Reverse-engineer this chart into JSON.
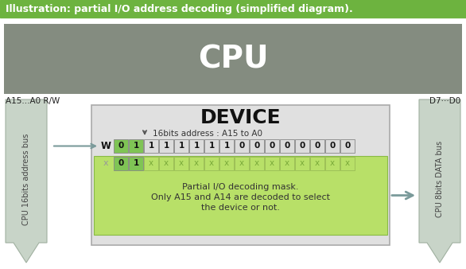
{
  "title_bar_text": "Illustration: partial I/O address decoding (simplified diagram).",
  "title_bar_color": "#6db33f",
  "title_text_color": "#ffffff",
  "bg_color": "#ffffff",
  "cpu_color": "#848c80",
  "cpu_text": "CPU",
  "cpu_text_color": "#ffffff",
  "label_a15": "A15...A0 R/W",
  "label_d7": "D7···D0",
  "device_box_color": "#e0e0e0",
  "device_box_border": "#aaaaaa",
  "device_text": "DEVICE",
  "device_subtitle": "16bits address : A15 to A0",
  "addr_row_label": "W",
  "addr_row": [
    "0",
    "1",
    "1",
    "1",
    "1",
    "1",
    "1",
    "1",
    "0",
    "0",
    "0",
    "0",
    "0",
    "0",
    "0",
    "0"
  ],
  "mask_row_label": "x",
  "mask_row": [
    "0",
    "1",
    "x",
    "x",
    "x",
    "x",
    "x",
    "x",
    "x",
    "x",
    "x",
    "x",
    "x",
    "x",
    "x",
    "x"
  ],
  "cell_bg_normal": "#dcdcdc",
  "cell_bg_green": "#7fc455",
  "cell_border": "#888888",
  "mask_bg": "#b8e068",
  "mask_text_muted": "#7aaa3a",
  "mask_note_line1": "Partial I/O decoding mask.",
  "mask_note_line2": "Only A15 and A14 are decoded to select",
  "mask_note_line3": "the device or not.",
  "bus_arrow_color": "#c8d4c8",
  "bus_arrow_border": "#a0b0a0",
  "horiz_arrow_color": "#7a9a9a",
  "left_bus_label": "CPU 16bits address bus",
  "right_bus_label": "CPU 8bits DATA bus",
  "fig_width": 5.86,
  "fig_height": 3.38,
  "dpi": 100
}
